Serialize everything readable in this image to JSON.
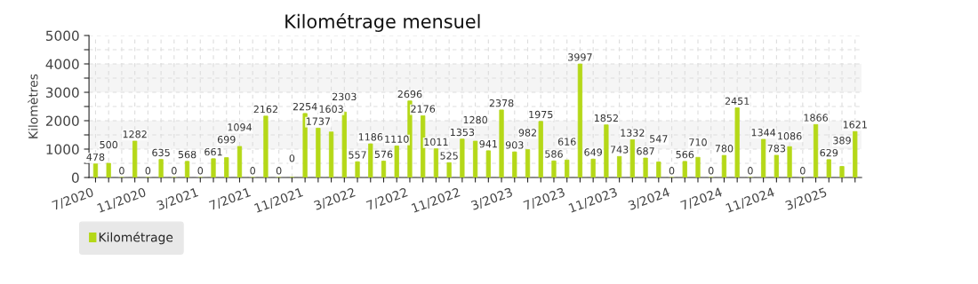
{
  "chart_data": {
    "type": "bar",
    "title": "Kilométrage mensuel",
    "ylabel": "Kilomètres",
    "categories": [
      "7/2020",
      null,
      null,
      null,
      "11/2020",
      null,
      null,
      null,
      "3/2021",
      null,
      null,
      null,
      "7/2021",
      null,
      null,
      null,
      "11/2021",
      null,
      null,
      null,
      "3/2022",
      null,
      null,
      null,
      "7/2022",
      null,
      null,
      null,
      "11/2022",
      null,
      null,
      null,
      "3/2023",
      null,
      null,
      null,
      "7/2023",
      null,
      null,
      null,
      "11/2023",
      null,
      null,
      null,
      "3/2024",
      null,
      null,
      null,
      "7/2024",
      null,
      null,
      null,
      "11/2024",
      null,
      null,
      null,
      "3/2025",
      null,
      null
    ],
    "series": [
      {
        "name": "Kilométrage",
        "color": "#b5d818",
        "values": [
          478,
          500,
          0,
          1282,
          0,
          635,
          0,
          568,
          0,
          661,
          699,
          1094,
          0,
          2162,
          0,
          0,
          2254,
          1737,
          1603,
          2303,
          557,
          1186,
          576,
          1110,
          2696,
          2176,
          1011,
          525,
          1353,
          1280,
          941,
          2378,
          903,
          982,
          1975,
          586,
          616,
          3997,
          649,
          1852,
          743,
          1332,
          687,
          547,
          0,
          566,
          710,
          0,
          780,
          2451,
          0,
          1344,
          783,
          1086,
          0,
          1866,
          629,
          389,
          1621
        ]
      }
    ],
    "ylim": [
      0,
      5000
    ],
    "yticks": [
      0,
      {
        "value": 500,
        "label": null
      },
      1000,
      {
        "value": 1500,
        "label": null
      },
      2000,
      {
        "value": 2500,
        "label": null
      },
      3000,
      {
        "value": 3500,
        "label": null
      },
      4000,
      {
        "value": 4500,
        "label": null
      },
      5000
    ],
    "bands": [
      {
        "axis": "y",
        "from": 1000,
        "to": 2000,
        "color": "#f5f5f5"
      },
      {
        "axis": "y",
        "from": 3000,
        "to": 4000,
        "color": "#f5f5f5"
      }
    ],
    "data_labels": true,
    "grid": true,
    "legend": "bottom left"
  }
}
